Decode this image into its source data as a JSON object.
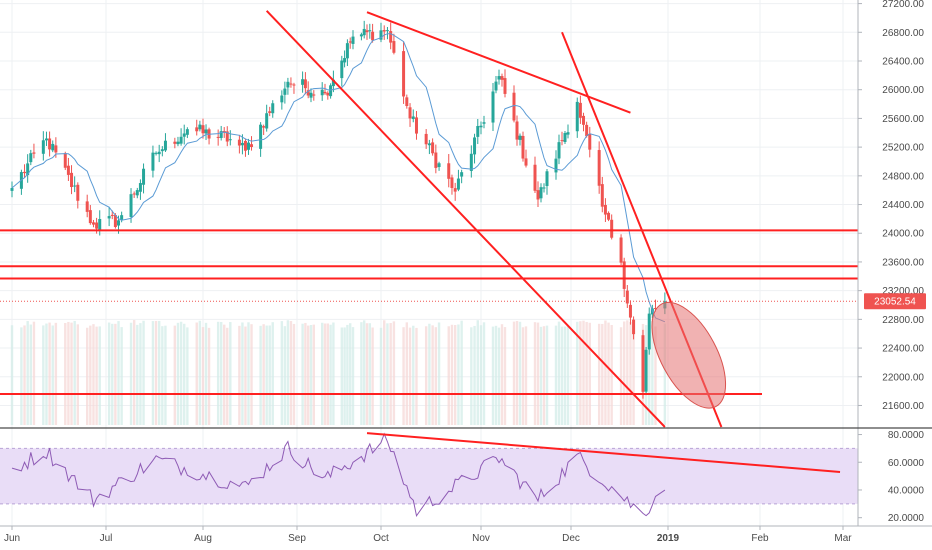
{
  "chart_data": {
    "type": "candlestick",
    "instrument_panel": {
      "y_axis": {
        "ticks": [
          "27200.00",
          "26800.00",
          "26400.00",
          "26000.00",
          "25600.00",
          "25200.00",
          "24800.00",
          "24400.00",
          "24000.00",
          "23600.00",
          "23200.00",
          "22800.00",
          "22400.00",
          "22000.00",
          "21600.00"
        ],
        "range": [
          21300,
          27250
        ]
      },
      "last_price": "23052.54",
      "last_price_color": "#ef5350",
      "up_color": "#26a69a",
      "down_color": "#ef5350",
      "moving_average_color": "#5b9bd5",
      "horizontal_levels": [
        24040,
        23540,
        23370,
        21760
      ],
      "trend_lines": [
        {
          "from": [
            "2018-08-22",
            27100
          ],
          "to": [
            "2018-12-31",
            21300
          ]
        },
        {
          "from": [
            "2018-09-26",
            27080
          ],
          "to": [
            "2018-12-20",
            25680
          ]
        },
        {
          "from": [
            "2018-11-28",
            26800
          ],
          "to": [
            "2019-01-19",
            21300
          ]
        }
      ],
      "ellipse": {
        "center": [
          "2019-01-08",
          22300
        ],
        "color": "#e57373"
      },
      "annotation_color": "#ff2020"
    },
    "x_axis": {
      "labels": [
        "Jun",
        "Jul",
        "Aug",
        "Sep",
        "Oct",
        "Nov",
        "Dec",
        "2019",
        "Feb",
        "Mar"
      ],
      "bold_label": "2019"
    },
    "approximate_closes": [
      {
        "date": "2018-06-01",
        "close": 24630
      },
      {
        "date": "2018-06-12",
        "close": 25320
      },
      {
        "date": "2018-06-27",
        "close": 24120
      },
      {
        "date": "2018-07-05",
        "close": 24180
      },
      {
        "date": "2018-07-17",
        "close": 25120
      },
      {
        "date": "2018-07-27",
        "close": 25450
      },
      {
        "date": "2018-08-10",
        "close": 25310
      },
      {
        "date": "2018-08-15",
        "close": 25150
      },
      {
        "date": "2018-08-29",
        "close": 26110
      },
      {
        "date": "2018-09-11",
        "close": 25950
      },
      {
        "date": "2018-09-21",
        "close": 26740
      },
      {
        "date": "2018-10-03",
        "close": 26830
      },
      {
        "date": "2018-10-10",
        "close": 25600
      },
      {
        "date": "2018-10-24",
        "close": 24580
      },
      {
        "date": "2018-11-07",
        "close": 26190
      },
      {
        "date": "2018-11-20",
        "close": 24470
      },
      {
        "date": "2018-12-03",
        "close": 25830
      },
      {
        "date": "2018-12-11",
        "close": 24370
      },
      {
        "date": "2018-12-17",
        "close": 23590
      },
      {
        "date": "2018-12-24",
        "close": 21790
      },
      {
        "date": "2018-12-26",
        "close": 22880
      },
      {
        "date": "2018-12-31",
        "close": 23052
      }
    ],
    "rsi_panel": {
      "ticks": [
        "80.0000",
        "60.0000",
        "40.0000",
        "20.0000"
      ],
      "range": [
        14,
        84
      ],
      "band": [
        30,
        70
      ],
      "line_color": "#8e5bb5",
      "band_color": "#e9ddf7",
      "trend_line": {
        "from": [
          "2018-09-26",
          81
        ],
        "to": [
          "2019-02-28",
          53
        ]
      },
      "approximate_values": [
        {
          "date": "2018-06-01",
          "value": 55
        },
        {
          "date": "2018-06-12",
          "value": 68
        },
        {
          "date": "2018-06-27",
          "value": 33
        },
        {
          "date": "2018-07-17",
          "value": 62
        },
        {
          "date": "2018-08-15",
          "value": 42
        },
        {
          "date": "2018-08-29",
          "value": 70
        },
        {
          "date": "2018-09-11",
          "value": 48
        },
        {
          "date": "2018-10-03",
          "value": 76
        },
        {
          "date": "2018-10-12",
          "value": 25
        },
        {
          "date": "2018-11-07",
          "value": 63
        },
        {
          "date": "2018-11-20",
          "value": 33
        },
        {
          "date": "2018-12-03",
          "value": 64
        },
        {
          "date": "2018-12-24",
          "value": 22
        },
        {
          "date": "2018-12-31",
          "value": 45
        }
      ]
    }
  }
}
